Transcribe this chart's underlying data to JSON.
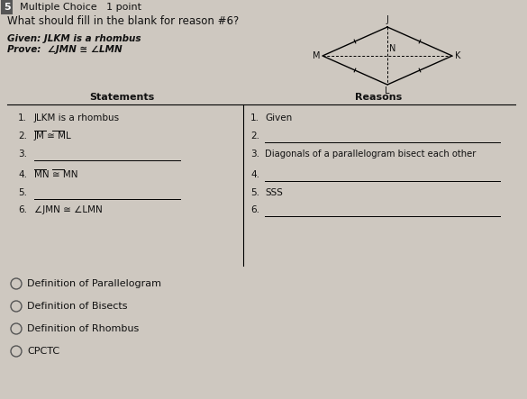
{
  "title_number": "5",
  "title_type": "Multiple Choice   1 point",
  "question": "What should fill in the blank for reason #6?",
  "given": "Given: JLKM is a rhombus",
  "prove": "Prove:  ∠JMN ≅ ∠LMN",
  "statements_header": "Statements",
  "reasons_header": "Reasons",
  "choices": [
    "Definition of Parallelogram",
    "Definition of Bisects",
    "Definition of Rhombus",
    "CPCTC"
  ],
  "bg_color": "#cec8c0",
  "text_color": "#111111",
  "fig_width": 5.85,
  "fig_height": 4.43,
  "dpi": 100
}
